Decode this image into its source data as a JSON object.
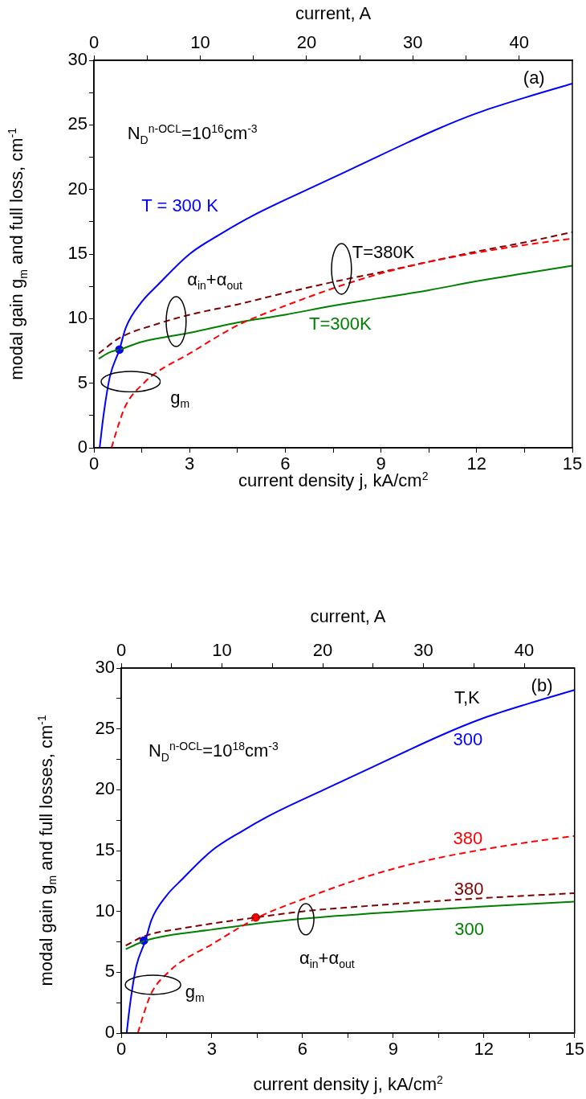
{
  "chart_data": [
    {
      "type": "line",
      "x2label": "current, A",
      "xlabel": "current density j, kA/cm$^{2}$",
      "ylabel": "modal gain g$_{m}$ and full loss, cm$^{-1}$",
      "xlim": [
        0,
        15
      ],
      "xticks": [
        0,
        {
          "value": 1.5,
          "label": null
        },
        3,
        {
          "value": 4.5,
          "label": null
        },
        6,
        {
          "value": 7.5,
          "label": null
        },
        9,
        {
          "value": 10.5,
          "label": null
        },
        12,
        {
          "value": 13.5,
          "label": null
        },
        15
      ],
      "x2lim": [
        0,
        45
      ],
      "x2ticks": [
        0,
        {
          "value": 5,
          "label": null
        },
        10,
        {
          "value": 15,
          "label": null
        },
        20,
        {
          "value": 25,
          "label": null
        },
        30,
        {
          "value": 35,
          "label": null
        },
        40
      ],
      "ylim": [
        0,
        30
      ],
      "yticks": [
        0,
        {
          "value": 2.5,
          "label": null
        },
        5,
        {
          "value": 7.5,
          "label": null
        },
        10,
        {
          "value": 12.5,
          "label": null
        },
        15,
        {
          "value": 17.5,
          "label": null
        },
        20,
        {
          "value": 22.5,
          "label": null
        },
        25,
        {
          "value": 27.5,
          "label": null
        },
        30
      ],
      "annotations": [
        "(a)",
        "N$_{D}$$^{n-OCL}$=10$^{16}$cm$^{-3}$",
        "T=380K",
        "α$_{in}$+α$_{out}$",
        "g$_{m}$"
      ],
      "series": [
        {
          "name": "T = 300 K",
          "color": "#0000ff",
          "line_style": "solid",
          "marker": "none",
          "x": [
            0.18,
            0.3,
            0.5,
            0.8,
            1,
            1.5,
            2,
            3,
            4,
            5,
            6.7,
            8,
            10.7,
            12,
            13.5,
            15
          ],
          "values": [
            0,
            2.5,
            5.5,
            7.6,
            9.3,
            11.3,
            12.6,
            15,
            16.6,
            18,
            20,
            21.5,
            24.6,
            25.9,
            27.1,
            28.2
          ]
        },
        {
          "color": "#ff0000",
          "line_style": "dashed",
          "marker": "none",
          "x": [
            0.55,
            0.8,
            1,
            1.6,
            2,
            3,
            4,
            4.6,
            6,
            7.8,
            9,
            10.5,
            12,
            13.5,
            15
          ],
          "values": [
            0,
            2,
            3.3,
            5.1,
            5.9,
            7.3,
            8.8,
            9.6,
            11,
            12.6,
            13.5,
            14.4,
            15.1,
            15.7,
            16.2
          ]
        },
        {
          "color": "#800000",
          "line_style": "dashed",
          "marker": "none",
          "x": [
            0.15,
            0.8,
            2,
            3,
            4.5,
            6,
            7.8,
            9,
            10.5,
            12,
            13.5,
            15
          ],
          "values": [
            7.3,
            8.5,
            9.6,
            10.3,
            11.1,
            12,
            13,
            13.6,
            14.4,
            15.2,
            15.9,
            16.7
          ]
        },
        {
          "name": "T=300K",
          "color": "#008000",
          "line_style": "solid",
          "marker": "none",
          "x": [
            0.15,
            0.5,
            0.8,
            1.5,
            3,
            4.5,
            6,
            7.5,
            9,
            10.5,
            12,
            13.5,
            15
          ],
          "values": [
            6.9,
            7.4,
            7.6,
            8.2,
            8.9,
            9.7,
            10.3,
            11,
            11.6,
            12.2,
            12.9,
            13.5,
            14.1
          ]
        },
        {
          "type": "scatter",
          "color": "#0000ff",
          "marker": "circle",
          "x": [
            0.8
          ],
          "values": [
            7.6
          ]
        }
      ]
    },
    {
      "type": "line",
      "x2label": "current, A",
      "xlabel": "current density j, kA/cm$^{2}$",
      "ylabel": "modal gain g$_{m}$ and full losses, cm$^{-1}$",
      "xlim": [
        0,
        15
      ],
      "xticks": [
        0,
        {
          "value": 1.5,
          "label": null
        },
        3,
        {
          "value": 4.5,
          "label": null
        },
        6,
        {
          "value": 7.5,
          "label": null
        },
        9,
        {
          "value": 10.5,
          "label": null
        },
        12,
        {
          "value": 13.5,
          "label": null
        },
        15
      ],
      "x2lim": [
        0,
        45
      ],
      "x2ticks": [
        0,
        {
          "value": 5,
          "label": null
        },
        10,
        {
          "value": 15,
          "label": null
        },
        20,
        {
          "value": 25,
          "label": null
        },
        30,
        {
          "value": 35,
          "label": null
        },
        40
      ],
      "ylim": [
        0,
        30
      ],
      "yticks": [
        0,
        {
          "value": 2.5,
          "label": null
        },
        5,
        {
          "value": 7.5,
          "label": null
        },
        10,
        {
          "value": 12.5,
          "label": null
        },
        15,
        {
          "value": 17.5,
          "label": null
        },
        20,
        {
          "value": 22.5,
          "label": null
        },
        25,
        {
          "value": 27.5,
          "label": null
        },
        30
      ],
      "annotations": [
        "(b)",
        "T,K",
        "N$_{D}$$^{n-OCL}$=10$^{18}$cm$^{-3}$",
        "α$_{in}$+α$_{out}$",
        "g$_{m}$"
      ],
      "series": [
        {
          "name": "300",
          "color": "#0000ff",
          "line_style": "solid",
          "marker": "none",
          "x": [
            0.18,
            0.3,
            0.5,
            0.8,
            1,
            1.5,
            2,
            3,
            4,
            5,
            6.7,
            8,
            10.7,
            12,
            13.5,
            15
          ],
          "values": [
            0,
            2.5,
            5.5,
            7.6,
            9.3,
            11.3,
            12.6,
            15,
            16.6,
            18,
            20,
            21.5,
            24.6,
            25.9,
            27.1,
            28.2
          ]
        },
        {
          "name": "380",
          "color": "#ff0000",
          "line_style": "dashed",
          "marker": "none",
          "x": [
            0.55,
            0.8,
            1,
            1.6,
            2,
            3,
            4,
            4.6,
            6,
            7.8,
            9,
            10.5,
            12,
            13.5,
            15
          ],
          "values": [
            0,
            2,
            3.3,
            5.1,
            5.9,
            7.3,
            8.8,
            9.6,
            11,
            12.6,
            13.5,
            14.4,
            15.1,
            15.7,
            16.2
          ]
        },
        {
          "name": "380",
          "color": "#800000",
          "line_style": "dashed",
          "marker": "none",
          "x": [
            0.15,
            0.8,
            2,
            3,
            4.45,
            6,
            9,
            12,
            15
          ],
          "values": [
            7.2,
            8,
            8.6,
            9,
            9.5,
            10,
            10.6,
            11.1,
            11.5
          ]
        },
        {
          "name": "300",
          "color": "#008000",
          "line_style": "solid",
          "marker": "none",
          "x": [
            0.15,
            0.5,
            0.8,
            1.5,
            3,
            4.5,
            6,
            9,
            12,
            15
          ],
          "values": [
            6.9,
            7.3,
            7.6,
            8,
            8.5,
            9,
            9.4,
            9.95,
            10.4,
            10.8
          ]
        },
        {
          "type": "scatter",
          "color": "#0000ff",
          "marker": "circle",
          "x": [
            0.75
          ],
          "values": [
            7.6
          ]
        },
        {
          "type": "scatter",
          "color": "#ff0000",
          "marker": "circle",
          "x": [
            4.45
          ],
          "values": [
            9.5
          ]
        }
      ]
    }
  ]
}
